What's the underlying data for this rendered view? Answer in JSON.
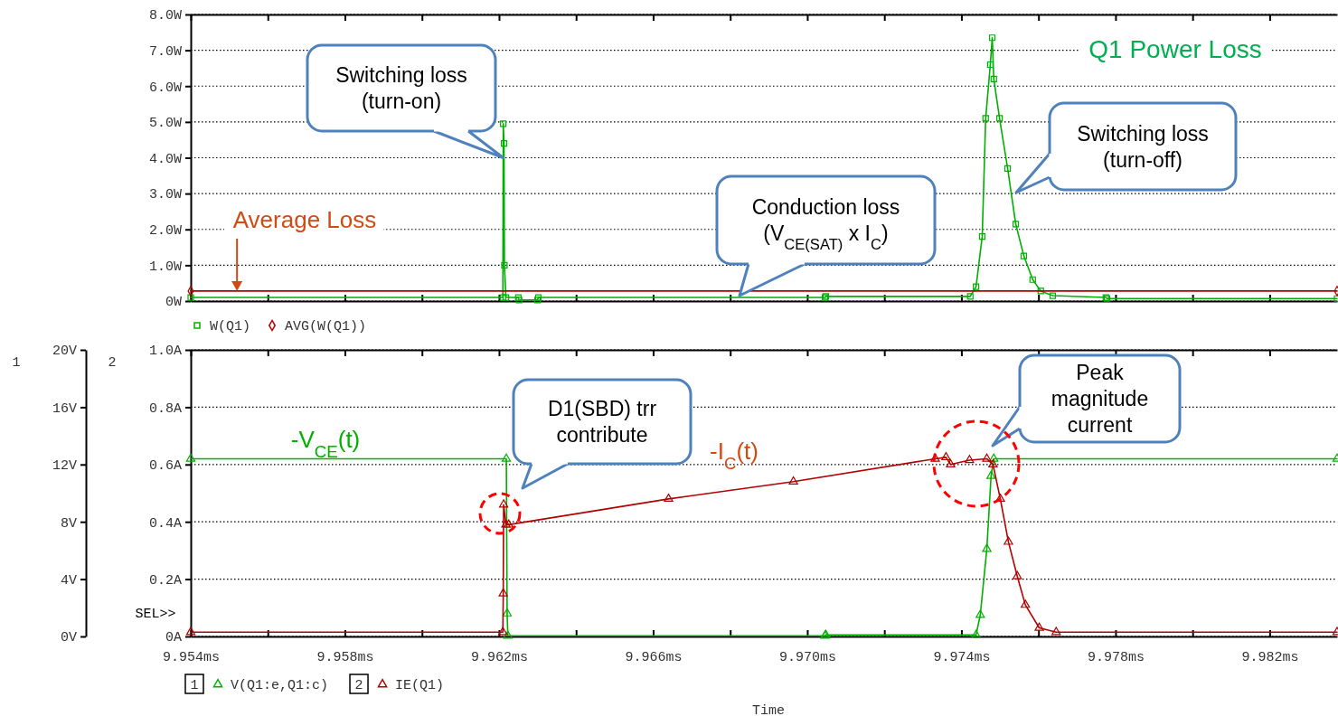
{
  "chart_data": [
    {
      "type": "line",
      "title": "Q1 Power Loss",
      "xlim": [
        9.954,
        9.98375
      ],
      "xticks": [
        {
          "value": 9.954,
          "label": null
        },
        {
          "value": 9.956,
          "label": null
        },
        {
          "value": 9.958,
          "label": null
        },
        {
          "value": 9.96,
          "label": null
        },
        {
          "value": 9.962,
          "label": null
        },
        {
          "value": 9.964,
          "label": null
        },
        {
          "value": 9.966,
          "label": null
        },
        {
          "value": 9.968,
          "label": null
        },
        {
          "value": 9.97,
          "label": null
        },
        {
          "value": 9.972,
          "label": null
        },
        {
          "value": 9.974,
          "label": null
        },
        {
          "value": 9.976,
          "label": null
        },
        {
          "value": 9.978,
          "label": null
        },
        {
          "value": 9.98,
          "label": null
        },
        {
          "value": 9.982,
          "label": null
        }
      ],
      "ylim": [
        0,
        8
      ],
      "yticks": [
        {
          "value": 0,
          "label": "0W"
        },
        {
          "value": 1,
          "label": "1.0W"
        },
        {
          "value": 2,
          "label": "2.0W"
        },
        {
          "value": 3,
          "label": "3.0W"
        },
        {
          "value": 4,
          "label": "4.0W"
        },
        {
          "value": 5,
          "label": "5.0W"
        },
        {
          "value": 6,
          "label": "6.0W"
        },
        {
          "value": 7,
          "label": "7.0W"
        },
        {
          "value": 8,
          "label": "8.0W"
        }
      ],
      "tick_labels": "y",
      "grid": "y",
      "legend": "bottom left",
      "series": [
        {
          "name": "W(Q1)",
          "color": "#00b000",
          "marker": "square",
          "x": [
            9.954,
            9.9621,
            9.96211,
            9.96213,
            9.96214,
            9.96218,
            9.9625,
            9.96252,
            9.963,
            9.96302,
            9.97046,
            9.97048,
            9.97423,
            9.97438,
            9.97454,
            9.97463,
            9.97475,
            9.9748,
            9.97484,
            9.97499,
            9.9752,
            9.97541,
            9.97562,
            9.97585,
            9.97606,
            9.97637,
            9.97775,
            9.97778,
            9.98375
          ],
          "values": [
            0.1,
            0.1,
            4.95,
            4.4,
            1.0,
            0.1,
            0.1,
            0.03,
            0.03,
            0.1,
            0.1,
            0.13,
            0.13,
            0.4,
            1.8,
            5.1,
            6.6,
            7.35,
            6.2,
            5.1,
            3.7,
            2.15,
            1.26,
            0.6,
            0.28,
            0.15,
            0.1,
            0.07,
            0.07
          ]
        },
        {
          "name": "AVG(W(Q1))",
          "color": "#b00000",
          "marker": "diamond",
          "x": [
            9.954,
            9.98375
          ],
          "values": [
            0.28,
            0.28
          ]
        }
      ],
      "annotations": [
        {
          "text": "Average Loss",
          "x": 9.9552,
          "y": 0.28
        },
        {
          "text": "Switching loss (turn-on)",
          "x": 9.96211,
          "y": 4.0
        },
        "Conduction loss (V$_{CE(SAT)}$ x I$_{C}$)",
        "Switching loss (turn-off)"
      ]
    },
    {
      "type": "line",
      "xlabel": "Time",
      "xlim": [
        9.954,
        9.98375
      ],
      "xticks": [
        {
          "value": 9.954,
          "label": "9.954ms"
        },
        {
          "value": 9.956,
          "label": null
        },
        {
          "value": 9.958,
          "label": "9.958ms"
        },
        {
          "value": 9.96,
          "label": null
        },
        {
          "value": 9.962,
          "label": "9.962ms"
        },
        {
          "value": 9.964,
          "label": null
        },
        {
          "value": 9.966,
          "label": "9.966ms"
        },
        {
          "value": 9.968,
          "label": null
        },
        {
          "value": 9.97,
          "label": "9.970ms"
        },
        {
          "value": 9.972,
          "label": null
        },
        {
          "value": 9.974,
          "label": "9.974ms"
        },
        {
          "value": 9.976,
          "label": null
        },
        {
          "value": 9.978,
          "label": "9.978ms"
        },
        {
          "value": 9.98,
          "label": null
        },
        {
          "value": 9.982,
          "label": "9.982ms"
        }
      ],
      "ylim": [
        0,
        20
      ],
      "yticks": [
        {
          "value": 0,
          "label": "0V"
        },
        {
          "value": 4,
          "label": "4V"
        },
        {
          "value": 8,
          "label": "8V"
        },
        {
          "value": 12,
          "label": "12V"
        },
        {
          "value": 16,
          "label": "16V"
        },
        {
          "value": 20,
          "label": "20V"
        }
      ],
      "y2lim": [
        0,
        1
      ],
      "y2ticks": [
        {
          "value": 0,
          "label": "0A"
        },
        {
          "value": 0.2,
          "label": "0.2A"
        },
        {
          "value": 0.4,
          "label": "0.4A"
        },
        {
          "value": 0.6,
          "label": "0.6A"
        },
        {
          "value": 0.8,
          "label": "0.8A"
        },
        {
          "value": 1,
          "label": "1.0A"
        }
      ],
      "grid": "y",
      "legend": "bottom",
      "series": [
        {
          "name": "V(Q1:e,Q1:c)",
          "color": "#00b000",
          "marker": "triangle",
          "axis": "y",
          "x": [
            9.954,
            9.96219,
            9.96221,
            9.96223,
            9.97046,
            9.97048,
            9.97438,
            9.97449,
            9.97466,
            9.97477,
            9.97484,
            9.98375
          ],
          "values": [
            12.4,
            12.4,
            1.6,
            0.05,
            0.05,
            0.1,
            0.1,
            1.5,
            6.1,
            11.2,
            12.4,
            12.4
          ]
        },
        {
          "name": "IE(Q1)",
          "color": "#b00000",
          "marker": "triangle",
          "axis": "y2",
          "x": [
            9.954,
            9.9621,
            9.96211,
            9.96212,
            9.96218,
            9.96225,
            9.9664,
            9.96964,
            9.97332,
            9.9736,
            9.97372,
            9.97421,
            9.97466,
            9.97482,
            9.97501,
            9.97522,
            9.97545,
            9.97566,
            9.97602,
            9.97646,
            9.98375
          ],
          "values": [
            0.015,
            0.015,
            0.15,
            0.46,
            0.39,
            0.39,
            0.48,
            0.54,
            0.62,
            0.625,
            0.6,
            0.615,
            0.62,
            0.6,
            0.48,
            0.33,
            0.21,
            0.11,
            0.03,
            0.015,
            0.015
          ]
        }
      ],
      "annotations": [
        "-V$_{CE}$(t)",
        "-I$_{C}$(t)",
        "D1(SBD) trr contribute",
        "Peak magnitude current",
        "SEL>>",
        "1",
        "2"
      ]
    }
  ]
}
